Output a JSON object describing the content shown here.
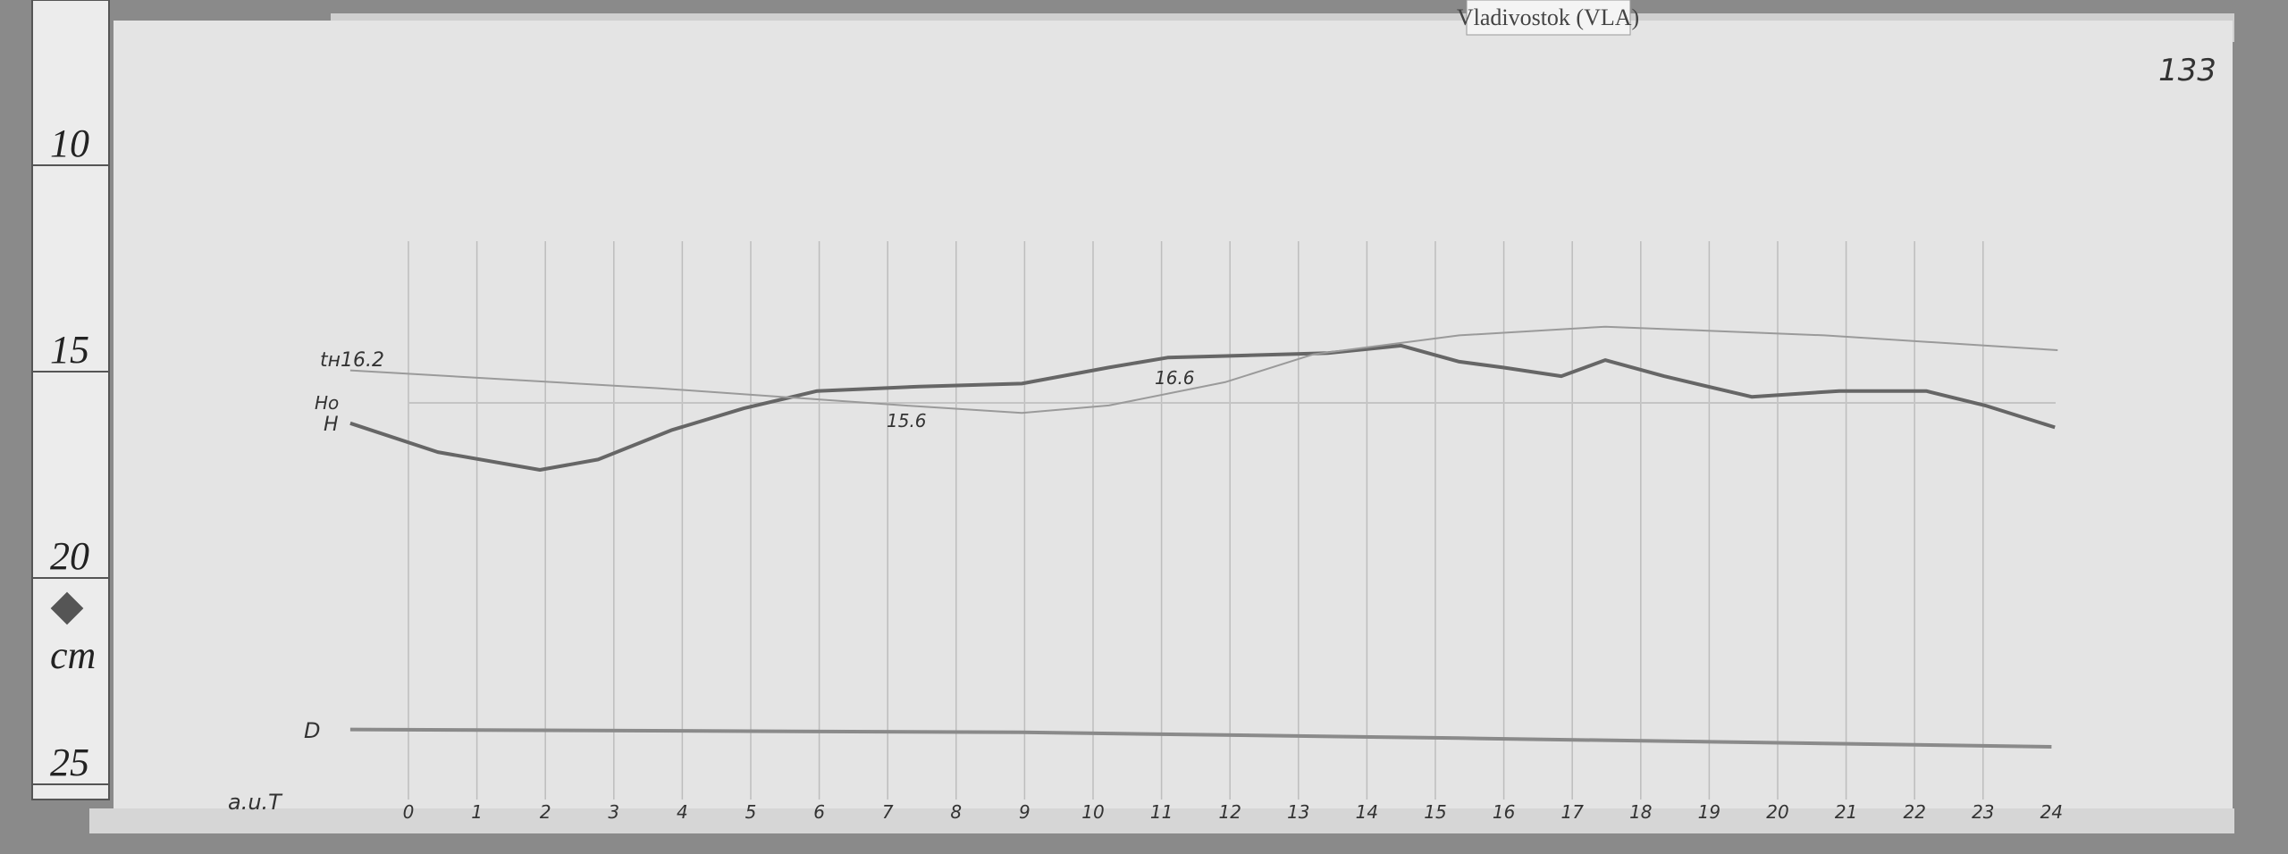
{
  "station_label": "Vladivostok (VLA)",
  "page_number": "133",
  "ruler": {
    "unit": "cm",
    "ticks": [
      {
        "label": "10",
        "cm": 10
      },
      {
        "label": "15",
        "cm": 15
      },
      {
        "label": "20",
        "cm": 20
      },
      {
        "label": "25",
        "cm": 25
      }
    ]
  },
  "annotations": {
    "temp_start": "tн16.2",
    "ho_label": "Ho",
    "h_label": "H",
    "temp_min": "15.6",
    "temp_mid": "16.6",
    "d_label": "D",
    "time_label": "a.u.T"
  },
  "colors": {
    "paper": "#e4e4e4",
    "trace": "#6a6a6a",
    "grid": "#b8b8b8",
    "background": "#8a8a8a"
  },
  "chart_data": {
    "type": "line",
    "xlabel": "a.u.T",
    "x_ticks": [
      "0",
      "1",
      "2",
      "3",
      "4",
      "5",
      "6",
      "7",
      "8",
      "9",
      "10",
      "11",
      "12",
      "13",
      "14",
      "15",
      "16",
      "17",
      "18",
      "19",
      "20",
      "21",
      "22",
      "23",
      "24"
    ],
    "xlim": [
      0,
      24
    ],
    "ylim_cm": [
      10,
      25
    ],
    "grid": "vertical hourly lines",
    "series": [
      {
        "name": "H",
        "x": [
          -0.85,
          0.43,
          1.92,
          2.77,
          3.84,
          4.9,
          5.97,
          7.46,
          8.96,
          10.23,
          11.09,
          11.94,
          12.79,
          13.43,
          14.5,
          15.35,
          15.99,
          16.84,
          17.48,
          18.34,
          19.62,
          20.9,
          22.17,
          23.03,
          24.05
        ],
        "y": [
          16.9,
          17.6,
          18.03,
          17.78,
          17.07,
          16.54,
          16.12,
          16.01,
          15.94,
          15.55,
          15.31,
          15.27,
          15.23,
          15.2,
          15.02,
          15.41,
          15.55,
          15.76,
          15.37,
          15.76,
          16.26,
          16.12,
          16.12,
          16.47,
          17.0
        ]
      },
      {
        "name": "tн",
        "x": [
          -0.85,
          3.62,
          7.25,
          8.96,
          10.23,
          11.94,
          13.22,
          15.35,
          17.48,
          20.68,
          24.09
        ],
        "y": [
          15.62,
          16.05,
          16.47,
          16.65,
          16.47,
          15.9,
          15.23,
          14.77,
          14.56,
          14.77,
          15.13
        ]
      },
      {
        "name": "D",
        "x": [
          -0.85,
          8.96,
          15.35,
          24.0
        ],
        "y": [
          24.32,
          24.39,
          24.53,
          24.74
        ]
      }
    ]
  }
}
